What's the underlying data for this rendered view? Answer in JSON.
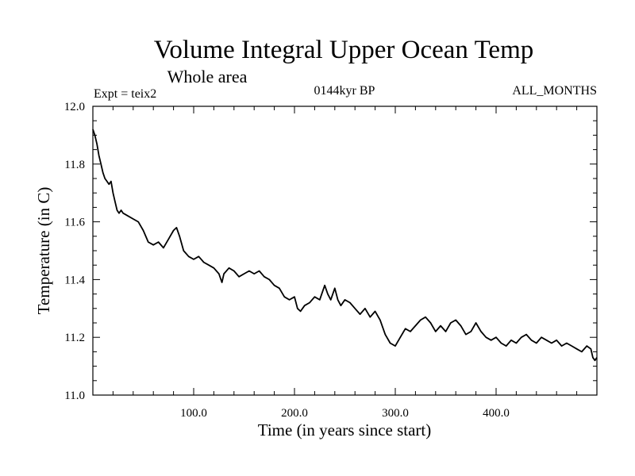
{
  "chart_data": {
    "type": "line",
    "title": "Volume Integral Upper Ocean Temp",
    "subtitle": "Whole area",
    "annotations": {
      "left": "Expt = teix2",
      "center": "0144kyr BP",
      "right": "ALL_MONTHS"
    },
    "xlabel": "Time (in years since start)",
    "ylabel": "Temperature (in C)",
    "xlim": [
      0,
      500
    ],
    "ylim": [
      11.0,
      12.0
    ],
    "x_ticks": [
      100,
      200,
      300,
      400
    ],
    "x_tick_labels": [
      "100.0",
      "200.0",
      "300.0",
      "400.0"
    ],
    "y_ticks": [
      11.0,
      11.2,
      11.4,
      11.6,
      11.8,
      12.0
    ],
    "y_tick_labels": [
      "11.0",
      "11.2",
      "11.4",
      "11.6",
      "11.8",
      "12.0"
    ],
    "grid": false,
    "line_color": "#000000",
    "series": [
      {
        "x": [
          0,
          2,
          4,
          6,
          8,
          10,
          12,
          14,
          16,
          18,
          20,
          22,
          24,
          26,
          28,
          30,
          35,
          40,
          45,
          50,
          55,
          60,
          65,
          70,
          75,
          80,
          83,
          86,
          90,
          95,
          100,
          105,
          110,
          115,
          120,
          125,
          128,
          130,
          135,
          140,
          145,
          150,
          155,
          160,
          165,
          170,
          175,
          180,
          185,
          190,
          195,
          200,
          203,
          206,
          210,
          215,
          220,
          225,
          230,
          233,
          236,
          240,
          243,
          246,
          250,
          255,
          260,
          265,
          270,
          275,
          280,
          285,
          290,
          295,
          300,
          305,
          310,
          315,
          320,
          325,
          330,
          335,
          340,
          345,
          350,
          355,
          360,
          365,
          370,
          375,
          380,
          385,
          390,
          395,
          400,
          405,
          410,
          415,
          420,
          425,
          430,
          435,
          440,
          445,
          450,
          455,
          460,
          465,
          470,
          475,
          480,
          485,
          490,
          494,
          496,
          498,
          500
        ],
        "y": [
          11.92,
          11.9,
          11.87,
          11.83,
          11.8,
          11.77,
          11.75,
          11.74,
          11.73,
          11.74,
          11.7,
          11.67,
          11.64,
          11.63,
          11.64,
          11.63,
          11.62,
          11.61,
          11.6,
          11.57,
          11.53,
          11.52,
          11.53,
          11.51,
          11.54,
          11.57,
          11.58,
          11.55,
          11.5,
          11.48,
          11.47,
          11.48,
          11.46,
          11.45,
          11.44,
          11.42,
          11.39,
          11.42,
          11.44,
          11.43,
          11.41,
          11.42,
          11.43,
          11.42,
          11.43,
          11.41,
          11.4,
          11.38,
          11.37,
          11.34,
          11.33,
          11.34,
          11.3,
          11.29,
          11.31,
          11.32,
          11.34,
          11.33,
          11.38,
          11.35,
          11.33,
          11.37,
          11.33,
          11.31,
          11.33,
          11.32,
          11.3,
          11.28,
          11.3,
          11.27,
          11.29,
          11.26,
          11.21,
          11.18,
          11.17,
          11.2,
          11.23,
          11.22,
          11.24,
          11.26,
          11.27,
          11.25,
          11.22,
          11.24,
          11.22,
          11.25,
          11.26,
          11.24,
          11.21,
          11.22,
          11.25,
          11.22,
          11.2,
          11.19,
          11.2,
          11.18,
          11.17,
          11.19,
          11.18,
          11.2,
          11.21,
          11.19,
          11.18,
          11.2,
          11.19,
          11.18,
          11.19,
          11.17,
          11.18,
          11.17,
          11.16,
          11.15,
          11.17,
          11.16,
          11.13,
          11.12,
          11.13
        ]
      }
    ]
  }
}
